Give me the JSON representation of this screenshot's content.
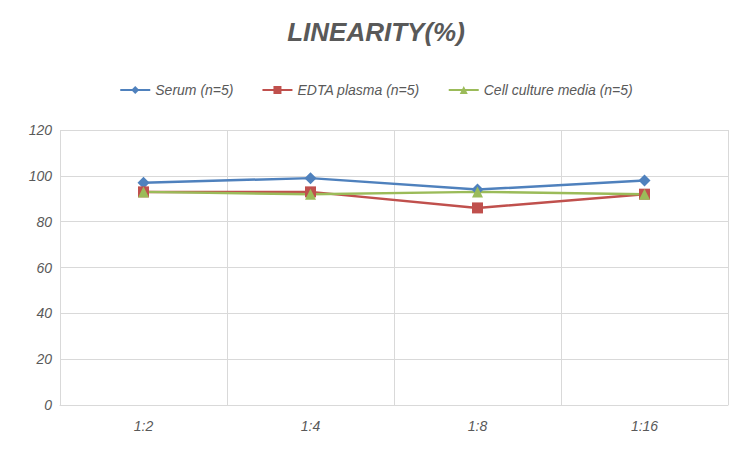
{
  "chart_data": {
    "type": "line",
    "title": "LINEARITY(%)",
    "categories": [
      "1:2",
      "1:4",
      "1:8",
      "1:16"
    ],
    "series": [
      {
        "name": "Serum (n=5)",
        "color": "#4f81bd",
        "marker": "diamond",
        "values": [
          97,
          99,
          94,
          98
        ]
      },
      {
        "name": "EDTA plasma (n=5)",
        "color": "#c0504d",
        "marker": "square",
        "values": [
          93,
          93,
          86,
          92
        ]
      },
      {
        "name": "Cell culture media (n=5)",
        "color": "#9bbb59",
        "marker": "triangle",
        "values": [
          93,
          92,
          93,
          92
        ]
      }
    ],
    "ylim": [
      0,
      120
    ],
    "yticks": [
      0,
      20,
      40,
      60,
      80,
      100,
      120
    ],
    "grid": true,
    "legend": "top"
  }
}
